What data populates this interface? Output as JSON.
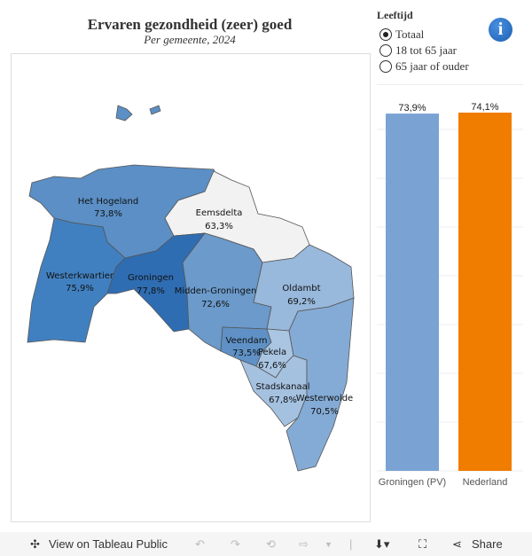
{
  "title": "Ervaren gezondheid (zeer) goed",
  "subtitle": "Per gemeente, 2024",
  "legend": {
    "title": "Leeftijd",
    "options": [
      {
        "label": "Totaal",
        "selected": true
      },
      {
        "label": "18 tot 65 jaar",
        "selected": false
      },
      {
        "label": "65 jaar of ouder",
        "selected": false
      }
    ]
  },
  "info_icon": "info-icon",
  "map": {
    "regions": [
      {
        "name": "Het Hogeland",
        "value": "73,8%",
        "color": "#5b8fc5"
      },
      {
        "name": "Eemsdelta",
        "value": "63,3%",
        "color": "#f2f2f2"
      },
      {
        "name": "Westerkwartier",
        "value": "75,9%",
        "color": "#4180c0"
      },
      {
        "name": "Groningen",
        "value": "77,8%",
        "color": "#2f6db3"
      },
      {
        "name": "Midden-Groningen",
        "value": "72,6%",
        "color": "#6b9acb"
      },
      {
        "name": "Oldambt",
        "value": "69,2%",
        "color": "#98b8dc"
      },
      {
        "name": "Veendam",
        "value": "73,5%",
        "color": "#5f91c6"
      },
      {
        "name": "Pekela",
        "value": "67,6%",
        "color": "#a9c5e2"
      },
      {
        "name": "Stadskanaal",
        "value": "67,8%",
        "color": "#a5c1e0"
      },
      {
        "name": "Westerwolde",
        "value": "70,5%",
        "color": "#84abd5"
      }
    ]
  },
  "chart_data": {
    "type": "bar",
    "categories": [
      "Groningen (PV)",
      "Nederland"
    ],
    "values": [
      73.9,
      74.1
    ],
    "labels": [
      "73,9%",
      "74,1%"
    ],
    "colors": [
      "#7aa3d4",
      "#f07c00"
    ],
    "ylim": [
      0,
      74.1
    ],
    "grid": true
  },
  "toolbar": {
    "view_label": "View on Tableau Public",
    "share_label": "Share"
  }
}
